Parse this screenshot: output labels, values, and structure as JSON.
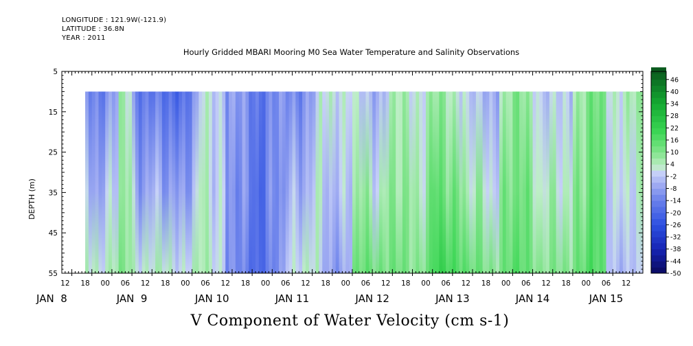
{
  "header": {
    "longitude": "LONGITUDE : 121.9W(-121.9)",
    "latitude": "LATITUDE : 36.8N",
    "year": "YEAR : 2011"
  },
  "title": "Hourly Gridded MBARI Mooring M0 Sea Water Temperature and Salinity Observations",
  "bottom_title": "V Component of Water Velocity (cm s-1)",
  "chart_data": {
    "type": "heatmap",
    "title": "Hourly Gridded MBARI Mooring M0 Sea Water Temperature and Salinity Observations",
    "subtitle": "V Component of Water Velocity (cm s-1)",
    "xlabel": "",
    "ylabel": "DEPTH (m)",
    "y_axis": {
      "range": [
        5,
        55
      ],
      "inverted": true,
      "ticks": [
        5,
        15,
        25,
        35,
        45,
        55
      ],
      "tick_labels": [
        "5",
        "15",
        "25",
        "35",
        "45",
        "55"
      ]
    },
    "x_axis": {
      "range_hours": [
        9,
        183
      ],
      "start": "2011-01-08T09:00",
      "end": "2011-01-15T15:00",
      "hour_tick_labels": [
        "12",
        "18",
        "00",
        "06",
        "12",
        "18",
        "00",
        "06",
        "12",
        "18",
        "00",
        "06",
        "12",
        "18",
        "00",
        "06",
        "12",
        "18",
        "00",
        "06",
        "12",
        "18",
        "00",
        "06",
        "12",
        "18",
        "00",
        "06",
        "12",
        "18",
        "00",
        "06"
      ],
      "hour_tick_positions_h": [
        12,
        18,
        24,
        30,
        36,
        42,
        48,
        54,
        60,
        66,
        72,
        78,
        84,
        90,
        96,
        102,
        108,
        114,
        120,
        126,
        132,
        138,
        144,
        150,
        156,
        162,
        168,
        174,
        180,
        186,
        192,
        198
      ],
      "day_labels": [
        "JAN  8",
        "JAN  9",
        "JAN 10",
        "JAN 11",
        "JAN 12",
        "JAN 13",
        "JAN 14",
        "JAN 15"
      ]
    },
    "data_extent": {
      "x_start_h": 16,
      "x_end_h": 183,
      "depth_top": 10,
      "depth_bottom": 55
    },
    "field_summary": [
      {
        "from_h": 16,
        "to_h": 26,
        "surface": -12,
        "bottom": 4
      },
      {
        "from_h": 26,
        "to_h": 30,
        "surface": 4,
        "bottom": 8
      },
      {
        "from_h": 30,
        "to_h": 50,
        "surface": -20,
        "bottom": 2
      },
      {
        "from_h": 50,
        "to_h": 58,
        "surface": 2,
        "bottom": 4
      },
      {
        "from_h": 58,
        "to_h": 76,
        "surface": -14,
        "bottom": -18
      },
      {
        "from_h": 76,
        "to_h": 86,
        "surface": -10,
        "bottom": 4
      },
      {
        "from_h": 86,
        "to_h": 96,
        "surface": 4,
        "bottom": -8
      },
      {
        "from_h": 96,
        "to_h": 106,
        "surface": -4,
        "bottom": 14
      },
      {
        "from_h": 106,
        "to_h": 120,
        "surface": 4,
        "bottom": 10
      },
      {
        "from_h": 120,
        "to_h": 130,
        "surface": 6,
        "bottom": 20
      },
      {
        "from_h": 130,
        "to_h": 140,
        "surface": -6,
        "bottom": 10
      },
      {
        "from_h": 140,
        "to_h": 152,
        "surface": 8,
        "bottom": 14
      },
      {
        "from_h": 152,
        "to_h": 162,
        "surface": -4,
        "bottom": 8
      },
      {
        "from_h": 162,
        "to_h": 172,
        "surface": 10,
        "bottom": 16
      },
      {
        "from_h": 172,
        "to_h": 183,
        "surface": 4,
        "bottom": -4
      }
    ],
    "colorbar": {
      "min": -50,
      "max": 50,
      "labels": [
        "46",
        "40",
        "34",
        "28",
        "22",
        "16",
        "10",
        "4",
        "-2",
        "-8",
        "-14",
        "-20",
        "-26",
        "-32",
        "-38",
        "-44",
        "-50"
      ],
      "label_values": [
        46,
        40,
        34,
        28,
        22,
        16,
        10,
        4,
        -2,
        -8,
        -14,
        -20,
        -26,
        -32,
        -38,
        -44,
        -50
      ],
      "colors": {
        "strong_negative": "#0a0a5e",
        "moderate_negative": "#3356e6",
        "weak_negative": "#9aa8f2",
        "near_zero": "#c9d3f7",
        "weak_positive": "#a6eeb0",
        "moderate_positive": "#35d85a",
        "strong_positive": "#0a5a1e"
      }
    }
  }
}
